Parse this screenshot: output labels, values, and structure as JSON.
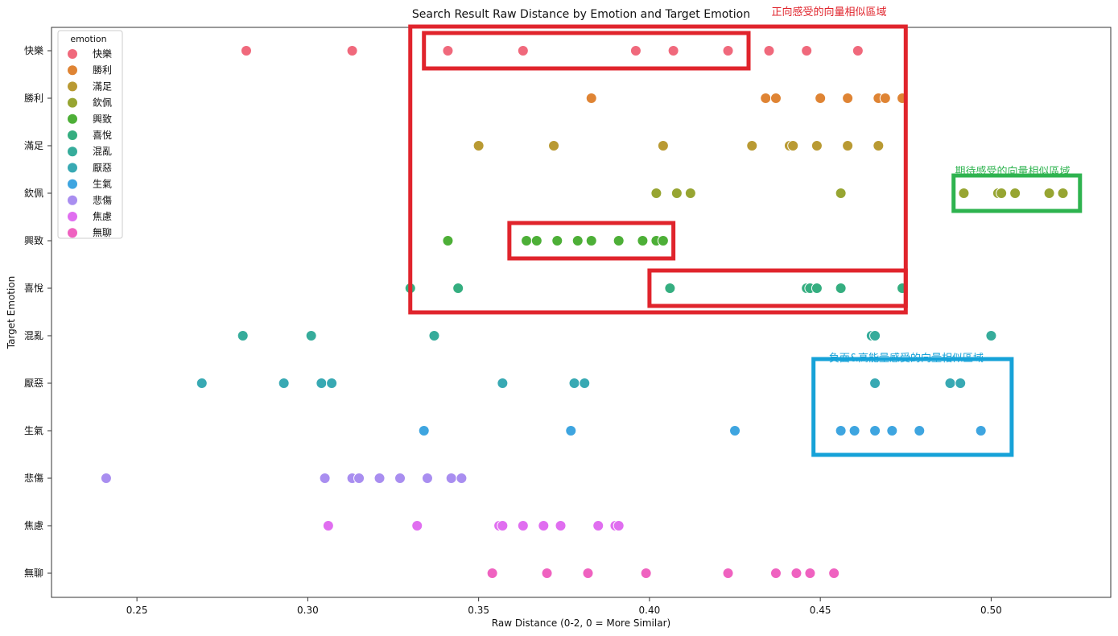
{
  "chart_data": {
    "type": "scatter",
    "title": "Search Result Raw Distance by Emotion and Target Emotion",
    "xlabel": "Raw Distance (0-2, 0 = More Similar)",
    "ylabel": "Target Emotion",
    "xlim": [
      0.225,
      0.535
    ],
    "xticks": [
      "0.25",
      "0.30",
      "0.35",
      "0.40",
      "0.45",
      "0.50"
    ],
    "xtick_values": [
      0.25,
      0.3,
      0.35,
      0.4,
      0.45,
      0.5
    ],
    "categories": [
      "快樂",
      "勝利",
      "滿足",
      "欽佩",
      "興致",
      "喜悅",
      "混亂",
      "厭惡",
      "生氣",
      "悲傷",
      "焦慮",
      "無聊"
    ],
    "grid": false,
    "legend": {
      "title": "emotion",
      "placement": "top-left"
    },
    "series": [
      {
        "name": "快樂",
        "color": "#f0697c",
        "x": [
          0.282,
          0.313,
          0.341,
          0.363,
          0.396,
          0.407,
          0.423,
          0.435,
          0.446,
          0.461
        ]
      },
      {
        "name": "勝利",
        "color": "#df8434",
        "x": [
          0.383,
          0.434,
          0.437,
          0.45,
          0.458,
          0.467,
          0.469,
          0.474
        ]
      },
      {
        "name": "滿足",
        "color": "#b99a33",
        "x": [
          0.35,
          0.372,
          0.404,
          0.43,
          0.441,
          0.442,
          0.449,
          0.458,
          0.467
        ]
      },
      {
        "name": "欽佩",
        "color": "#97a532",
        "x": [
          0.402,
          0.408,
          0.412,
          0.456,
          0.492,
          0.502,
          0.503,
          0.507,
          0.517,
          0.521
        ]
      },
      {
        "name": "興致",
        "color": "#4daf37",
        "x": [
          0.341,
          0.364,
          0.367,
          0.373,
          0.379,
          0.383,
          0.391,
          0.398,
          0.402,
          0.404
        ]
      },
      {
        "name": "喜悅",
        "color": "#35ae80",
        "x": [
          0.33,
          0.344,
          0.406,
          0.446,
          0.447,
          0.449,
          0.456,
          0.474
        ]
      },
      {
        "name": "混亂",
        "color": "#36ac9b",
        "x": [
          0.281,
          0.301,
          0.337,
          0.465,
          0.466,
          0.5
        ]
      },
      {
        "name": "厭惡",
        "color": "#38a9b3",
        "x": [
          0.269,
          0.293,
          0.304,
          0.307,
          0.357,
          0.378,
          0.381,
          0.466,
          0.488,
          0.491
        ]
      },
      {
        "name": "生氣",
        "color": "#3ea5e0",
        "x": [
          0.334,
          0.377,
          0.425,
          0.456,
          0.46,
          0.466,
          0.471,
          0.479,
          0.497
        ]
      },
      {
        "name": "悲傷",
        "color": "#a98ef0",
        "x": [
          0.241,
          0.305,
          0.313,
          0.315,
          0.321,
          0.327,
          0.335,
          0.342,
          0.345
        ]
      },
      {
        "name": "焦慮",
        "color": "#e06ef0",
        "x": [
          0.306,
          0.332,
          0.356,
          0.357,
          0.363,
          0.369,
          0.374,
          0.385,
          0.39,
          0.391
        ]
      },
      {
        "name": "無聊",
        "color": "#ef62c0",
        "x": [
          0.354,
          0.37,
          0.382,
          0.399,
          0.423,
          0.437,
          0.443,
          0.447,
          0.454
        ]
      }
    ],
    "annotations": [
      {
        "text": "正向感受的向量相似區域",
        "color": "#e0242c"
      },
      {
        "text": "期待感受的向量相似區域",
        "color": "#2eb34f"
      },
      {
        "text": "負面&高能量感受的向量相似區域",
        "color": "#16a2d8"
      }
    ],
    "highlight_boxes": [
      {
        "color": "#e0242c",
        "x_range": [
          0.33,
          0.475
        ],
        "y_categories": [
          "快樂",
          "喜悅"
        ]
      },
      {
        "color": "#e0242c",
        "x_range": [
          0.334,
          0.429
        ],
        "y_categories": [
          "快樂",
          "快樂"
        ]
      },
      {
        "color": "#e0242c",
        "x_range": [
          0.359,
          0.407
        ],
        "y_categories": [
          "興致",
          "興致"
        ]
      },
      {
        "color": "#e0242c",
        "x_range": [
          0.4,
          0.475
        ],
        "y_categories": [
          "喜悅",
          "喜悅"
        ]
      },
      {
        "color": "#2eb34f",
        "x_range": [
          0.489,
          0.526
        ],
        "y_categories": [
          "欽佩",
          "欽佩"
        ]
      },
      {
        "color": "#16a2d8",
        "x_range": [
          0.448,
          0.506
        ],
        "y_categories": [
          "厭惡",
          "生氣"
        ]
      }
    ]
  }
}
